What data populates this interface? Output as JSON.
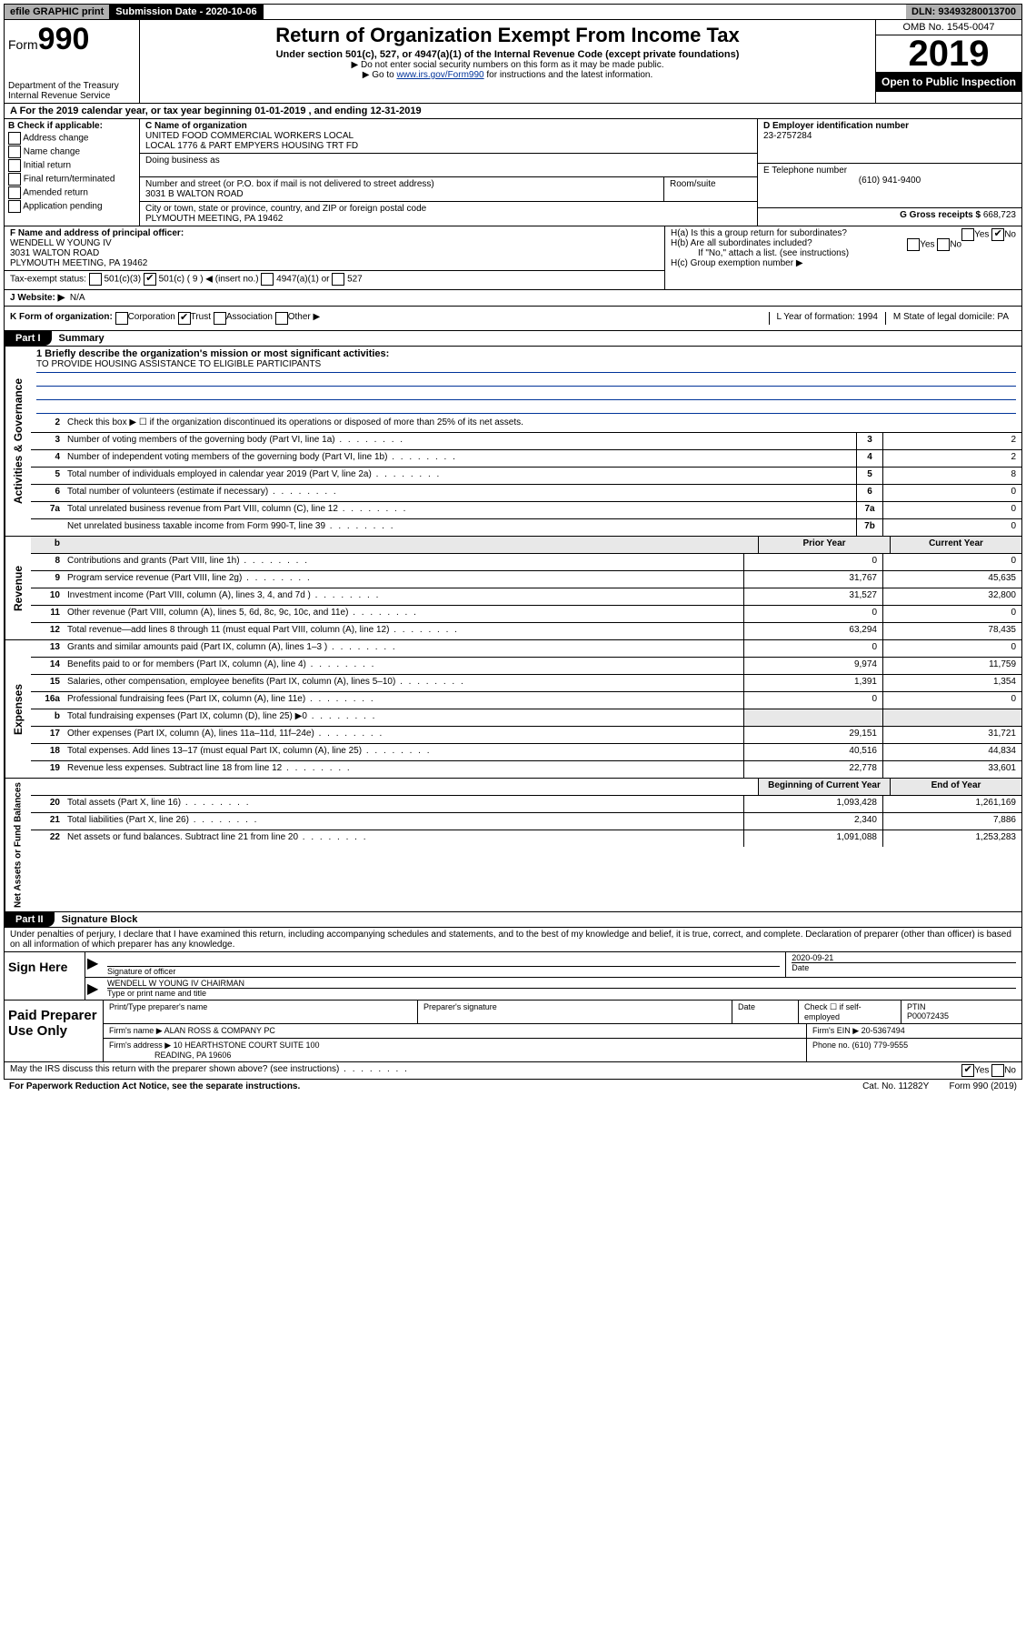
{
  "topbar": {
    "efile": "efile GRAPHIC print",
    "submission": "Submission Date - 2020-10-06",
    "dln": "DLN: 93493280013700"
  },
  "header": {
    "form_prefix": "Form",
    "form_num": "990",
    "dept": "Department of the Treasury Internal Revenue Service",
    "title": "Return of Organization Exempt From Income Tax",
    "sub1": "Under section 501(c), 527, or 4947(a)(1) of the Internal Revenue Code (except private foundations)",
    "sub2": "▶ Do not enter social security numbers on this form as it may be made public.",
    "sub3_pre": "▶ Go to ",
    "sub3_link": "www.irs.gov/Form990",
    "sub3_post": " for instructions and the latest information.",
    "omb": "OMB No. 1545-0047",
    "year": "2019",
    "openpub": "Open to Public Inspection"
  },
  "row_a": "A For the 2019 calendar year, or tax year beginning 01-01-2019     , and ending 12-31-2019",
  "section_b": {
    "label": "B Check if applicable:",
    "opts": [
      "Address change",
      "Name change",
      "Initial return",
      "Final return/terminated",
      "Amended return",
      "Application pending"
    ]
  },
  "section_c": {
    "name_label": "C Name of organization",
    "name": "UNITED FOOD COMMERCIAL WORKERS LOCAL\nLOCAL 1776 & PART EMPYERS HOUSING TRT FD",
    "dba_label": "Doing business as",
    "addr_label": "Number and street (or P.O. box if mail is not delivered to street address)",
    "room_label": "Room/suite",
    "addr": "3031 B WALTON ROAD",
    "city_label": "City or town, state or province, country, and ZIP or foreign postal code",
    "city": "PLYMOUTH MEETING, PA  19462"
  },
  "section_d": {
    "ein_label": "D Employer identification number",
    "ein": "23-2757284",
    "tel_label": "E Telephone number",
    "tel": "(610) 941-9400",
    "gross_label": "G Gross receipts $",
    "gross": "668,723"
  },
  "row_f": {
    "label": "F  Name and address of principal officer:",
    "name": "WENDELL W YOUNG IV",
    "addr1": "3031 WALTON ROAD",
    "addr2": "PLYMOUTH MEETING, PA  19462"
  },
  "row_h": {
    "ha": "H(a)  Is this a group return for subordinates?",
    "hb": "H(b)  Are all subordinates included?",
    "hb_note": "If \"No,\" attach a list. (see instructions)",
    "hc": "H(c)  Group exemption number ▶"
  },
  "tax_exempt": {
    "label": "Tax-exempt status:",
    "o1": "501(c)(3)",
    "o2": "501(c) ( 9 ) ◀ (insert no.)",
    "o3": "4947(a)(1) or",
    "o4": "527"
  },
  "row_j": {
    "label": "J   Website: ▶",
    "val": "N/A"
  },
  "row_k": {
    "label": "K Form of organization:",
    "o1": "Corporation",
    "o2": "Trust",
    "o3": "Association",
    "o4": "Other ▶",
    "l": "L Year of formation: 1994",
    "m": "M State of legal domicile: PA"
  },
  "part1": {
    "tab": "Part I",
    "title": "Summary"
  },
  "mission": {
    "q": "1   Briefly describe the organization's mission or most significant activities:",
    "text": "TO PROVIDE HOUSING ASSISTANCE TO ELIGIBLE PARTICIPANTS"
  },
  "line2": "Check this box ▶ ☐  if the organization discontinued its operations or disposed of more than 25% of its net assets.",
  "govlines": [
    {
      "n": "3",
      "d": "Number of voting members of the governing body (Part VI, line 1a)",
      "b": "3",
      "v": "2"
    },
    {
      "n": "4",
      "d": "Number of independent voting members of the governing body (Part VI, line 1b)",
      "b": "4",
      "v": "2"
    },
    {
      "n": "5",
      "d": "Total number of individuals employed in calendar year 2019 (Part V, line 2a)",
      "b": "5",
      "v": "8"
    },
    {
      "n": "6",
      "d": "Total number of volunteers (estimate if necessary)",
      "b": "6",
      "v": "0"
    },
    {
      "n": "7a",
      "d": "Total unrelated business revenue from Part VIII, column (C), line 12",
      "b": "7a",
      "v": "0"
    },
    {
      "n": "",
      "d": "Net unrelated business taxable income from Form 990-T, line 39",
      "b": "7b",
      "v": "0"
    }
  ],
  "revhdr": {
    "prior": "Prior Year",
    "curr": "Current Year"
  },
  "revenue": [
    {
      "n": "8",
      "d": "Contributions and grants (Part VIII, line 1h)",
      "p": "0",
      "c": "0"
    },
    {
      "n": "9",
      "d": "Program service revenue (Part VIII, line 2g)",
      "p": "31,767",
      "c": "45,635"
    },
    {
      "n": "10",
      "d": "Investment income (Part VIII, column (A), lines 3, 4, and 7d )",
      "p": "31,527",
      "c": "32,800"
    },
    {
      "n": "11",
      "d": "Other revenue (Part VIII, column (A), lines 5, 6d, 8c, 9c, 10c, and 11e)",
      "p": "0",
      "c": "0"
    },
    {
      "n": "12",
      "d": "Total revenue—add lines 8 through 11 (must equal Part VIII, column (A), line 12)",
      "p": "63,294",
      "c": "78,435"
    }
  ],
  "expenses": [
    {
      "n": "13",
      "d": "Grants and similar amounts paid (Part IX, column (A), lines 1–3 )",
      "p": "0",
      "c": "0"
    },
    {
      "n": "14",
      "d": "Benefits paid to or for members (Part IX, column (A), line 4)",
      "p": "9,974",
      "c": "11,759"
    },
    {
      "n": "15",
      "d": "Salaries, other compensation, employee benefits (Part IX, column (A), lines 5–10)",
      "p": "1,391",
      "c": "1,354"
    },
    {
      "n": "16a",
      "d": "Professional fundraising fees (Part IX, column (A), line 11e)",
      "p": "0",
      "c": "0"
    },
    {
      "n": "b",
      "d": "Total fundraising expenses (Part IX, column (D), line 25) ▶0",
      "p": "",
      "c": ""
    },
    {
      "n": "17",
      "d": "Other expenses (Part IX, column (A), lines 11a–11d, 11f–24e)",
      "p": "29,151",
      "c": "31,721"
    },
    {
      "n": "18",
      "d": "Total expenses. Add lines 13–17 (must equal Part IX, column (A), line 25)",
      "p": "40,516",
      "c": "44,834"
    },
    {
      "n": "19",
      "d": "Revenue less expenses. Subtract line 18 from line 12",
      "p": "22,778",
      "c": "33,601"
    }
  ],
  "nethdr": {
    "beg": "Beginning of Current Year",
    "end": "End of Year"
  },
  "netassets": [
    {
      "n": "20",
      "d": "Total assets (Part X, line 16)",
      "p": "1,093,428",
      "c": "1,261,169"
    },
    {
      "n": "21",
      "d": "Total liabilities (Part X, line 26)",
      "p": "2,340",
      "c": "7,886"
    },
    {
      "n": "22",
      "d": "Net assets or fund balances. Subtract line 21 from line 20",
      "p": "1,091,088",
      "c": "1,253,283"
    }
  ],
  "part2": {
    "tab": "Part II",
    "title": "Signature Block"
  },
  "perjury": "Under penalties of perjury, I declare that I have examined this return, including accompanying schedules and statements, and to the best of my knowledge and belief, it is true, correct, and complete. Declaration of preparer (other than officer) is based on all information of which preparer has any knowledge.",
  "sign": {
    "label": "Sign Here",
    "sig_label": "Signature of officer",
    "date": "2020-09-21",
    "date_label": "Date",
    "name": "WENDELL W YOUNG IV  CHAIRMAN",
    "name_label": "Type or print name and title"
  },
  "prep": {
    "label": "Paid Preparer Use Only",
    "h1": "Print/Type preparer's name",
    "h2": "Preparer's signature",
    "h3": "Date",
    "h4": "Check ☐ if self-employed",
    "h5": "PTIN",
    "ptin": "P00072435",
    "firm_label": "Firm's name     ▶",
    "firm": "ALAN ROSS & COMPANY PC",
    "ein_label": "Firm's EIN ▶",
    "ein": "20-5367494",
    "addr_label": "Firm's address ▶",
    "addr": "10 HEARTHSTONE COURT SUITE 100",
    "addr2": "READING, PA  19606",
    "phone_label": "Phone no.",
    "phone": "(610) 779-9555"
  },
  "discuss": "May the IRS discuss this return with the preparer shown above? (see instructions)",
  "footer": {
    "left": "For Paperwork Reduction Act Notice, see the separate instructions.",
    "mid": "Cat. No. 11282Y",
    "right": "Form 990 (2019)"
  },
  "sidelabels": {
    "gov": "Activities & Governance",
    "rev": "Revenue",
    "exp": "Expenses",
    "net": "Net Assets or Fund Balances"
  }
}
